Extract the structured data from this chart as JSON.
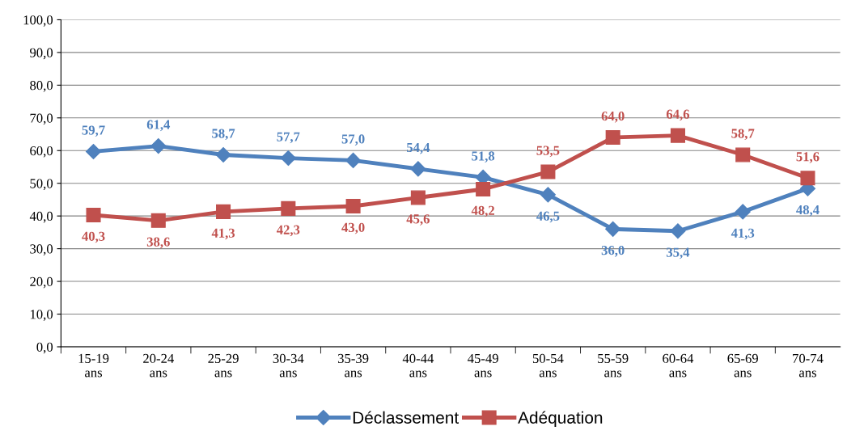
{
  "chart_data": {
    "type": "line",
    "categories": [
      "15-19\nans",
      "20-24\nans",
      "25-29\nans",
      "30-34\nans",
      "35-39\nans",
      "40-44\nans",
      "45-49\nans",
      "50-54\nans",
      "55-59\nans",
      "60-64\nans",
      "65-69\nans",
      "70-74\nans"
    ],
    "series": [
      {
        "name": "Déclassement",
        "color": "#4f81bd",
        "marker": "diamond",
        "values": [
          59.7,
          61.4,
          58.7,
          57.7,
          57.0,
          54.4,
          51.8,
          46.5,
          36.0,
          35.4,
          41.3,
          48.4
        ],
        "value_labels": [
          "59,7",
          "61,4",
          "58,7",
          "57,7",
          "57,0",
          "54,4",
          "51,8",
          "46,5",
          "36,0",
          "35,4",
          "41,3",
          "48,4"
        ]
      },
      {
        "name": "Adéquation",
        "color": "#c0504d",
        "marker": "square",
        "values": [
          40.3,
          38.6,
          41.3,
          42.3,
          43.0,
          45.6,
          48.2,
          53.5,
          64.0,
          64.6,
          58.7,
          51.6
        ],
        "value_labels": [
          "40,3",
          "38,6",
          "41,3",
          "42,3",
          "43,0",
          "45,6",
          "48,2",
          "53,5",
          "64,0",
          "64,6",
          "58,7",
          "51,6"
        ]
      }
    ],
    "ylim": [
      0,
      100
    ],
    "yticks": [
      {
        "value": 0,
        "label": "0,0"
      },
      {
        "value": 10,
        "label": "10,0"
      },
      {
        "value": 20,
        "label": "20,0"
      },
      {
        "value": 30,
        "label": "30,0"
      },
      {
        "value": 40,
        "label": "40,0"
      },
      {
        "value": 50,
        "label": "50,0"
      },
      {
        "value": 60,
        "label": "60,0"
      },
      {
        "value": 70,
        "label": "70,0"
      },
      {
        "value": 80,
        "label": "80,0"
      },
      {
        "value": 90,
        "label": "90,0"
      },
      {
        "value": 100,
        "label": "100,0"
      }
    ],
    "grid": "y",
    "legend": "bottom",
    "line_style": "solid"
  }
}
